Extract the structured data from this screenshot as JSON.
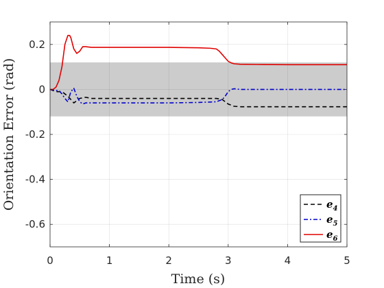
{
  "chart_data": {
    "type": "line",
    "title": "",
    "xlabel": "Time (s)",
    "ylabel": "Orientation Error (rad)",
    "xlim": [
      0,
      5
    ],
    "ylim": [
      -0.7,
      0.3
    ],
    "xticks": [
      0,
      1,
      2,
      3,
      4,
      5
    ],
    "xtick_labels": [
      "0",
      "1",
      "2",
      "3",
      "4",
      "5"
    ],
    "yticks": [
      0.2,
      0,
      -0.2,
      -0.4,
      -0.6
    ],
    "ytick_labels": [
      "0.2",
      "0",
      "-0.2",
      "-0.4",
      "-0.6"
    ],
    "grid": true,
    "legend_position": "bottom-right",
    "band": {
      "y_range": [
        -0.12,
        0.12
      ],
      "color": "#cccccc"
    },
    "series": [
      {
        "name": "e",
        "subscript": "4",
        "color": "#000000",
        "dash": "dashed",
        "x": [
          0,
          0.1,
          0.2,
          0.3,
          0.35,
          0.4,
          0.45,
          0.5,
          0.6,
          0.7,
          0.8,
          1.0,
          1.5,
          2.0,
          2.5,
          2.8,
          2.9,
          2.95,
          3.0,
          3.05,
          3.1,
          3.2,
          3.5,
          4.0,
          4.5,
          5.0
        ],
        "y": [
          0,
          -0.01,
          -0.01,
          -0.03,
          -0.045,
          -0.06,
          -0.05,
          -0.04,
          -0.035,
          -0.04,
          -0.04,
          -0.04,
          -0.04,
          -0.04,
          -0.04,
          -0.04,
          -0.045,
          -0.055,
          -0.065,
          -0.07,
          -0.075,
          -0.077,
          -0.077,
          -0.077,
          -0.077,
          -0.077
        ]
      },
      {
        "name": "e",
        "subscript": "5",
        "color": "#0000cc",
        "dash": "dashdot",
        "x": [
          0,
          0.1,
          0.15,
          0.2,
          0.25,
          0.3,
          0.35,
          0.4,
          0.45,
          0.5,
          0.55,
          0.6,
          0.7,
          0.8,
          1.0,
          1.5,
          2.0,
          2.5,
          2.8,
          2.9,
          2.95,
          3.0,
          3.05,
          3.1,
          3.2,
          3.5,
          4.0,
          4.5,
          5.0
        ],
        "y": [
          0,
          -0.005,
          -0.005,
          -0.02,
          -0.04,
          -0.055,
          -0.01,
          0.005,
          -0.03,
          -0.055,
          -0.065,
          -0.06,
          -0.06,
          -0.06,
          -0.06,
          -0.06,
          -0.06,
          -0.058,
          -0.055,
          -0.045,
          -0.03,
          -0.01,
          0,
          0.003,
          0,
          0,
          0,
          0,
          0
        ]
      },
      {
        "name": "e",
        "subscript": "6",
        "color": "#e00000",
        "dash": "solid",
        "x": [
          0,
          0.05,
          0.1,
          0.15,
          0.2,
          0.25,
          0.3,
          0.33,
          0.35,
          0.4,
          0.45,
          0.5,
          0.55,
          0.6,
          0.7,
          0.8,
          1.0,
          1.5,
          2.0,
          2.5,
          2.7,
          2.8,
          2.85,
          2.9,
          2.95,
          3.0,
          3.05,
          3.1,
          3.2,
          3.5,
          4.0,
          4.5,
          5.0
        ],
        "y": [
          0,
          0.0,
          0.01,
          0.04,
          0.1,
          0.2,
          0.24,
          0.24,
          0.23,
          0.18,
          0.16,
          0.17,
          0.19,
          0.19,
          0.187,
          0.187,
          0.187,
          0.187,
          0.187,
          0.185,
          0.183,
          0.18,
          0.17,
          0.155,
          0.14,
          0.125,
          0.118,
          0.114,
          0.112,
          0.111,
          0.11,
          0.11,
          0.11
        ]
      }
    ]
  }
}
